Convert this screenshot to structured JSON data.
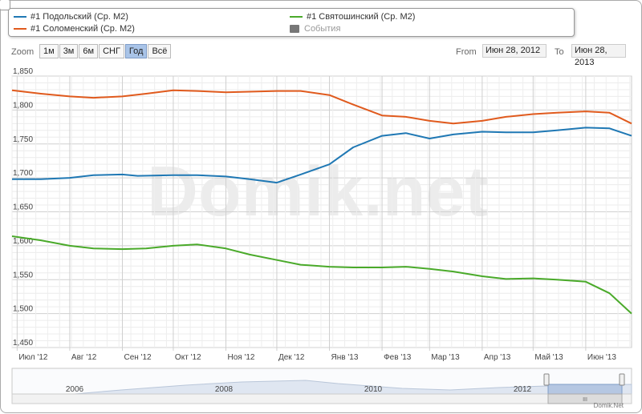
{
  "watermark": "Domik.net",
  "credit": "Domik.Net",
  "legend": {
    "items": [
      {
        "label": "#1 Подольский (Ср. М2)",
        "color": "#1f78b4"
      },
      {
        "label": "#1 Соломенский (Ср. М2)",
        "color": "#e05a1d"
      },
      {
        "label": "#1 Святошинский (Ср. М2)",
        "color": "#4aaa2a"
      },
      {
        "label": "События",
        "color": "#777777"
      }
    ]
  },
  "zoom": {
    "label": "Zoom",
    "buttons": [
      "1м",
      "3м",
      "6м",
      "СНГ",
      "Год",
      "Всё"
    ],
    "active": "Год"
  },
  "range": {
    "from_label": "From",
    "from_value": "Июн 28, 2012",
    "to_label": "To",
    "to_value": "Июн 28, 2013"
  },
  "chart_data": {
    "type": "line",
    "ylim": [
      1450,
      1850
    ],
    "yticks": [
      1450,
      1500,
      1550,
      1600,
      1650,
      1700,
      1750,
      1800,
      1850
    ],
    "ytick_labels": [
      "1,450",
      "1,500",
      "1,550",
      "1,600",
      "1,650",
      "1,700",
      "1,750",
      "1,800",
      "1,850"
    ],
    "xlim": [
      "2012-06-28",
      "2013-06-28"
    ],
    "xticks": [
      "2012-07-01",
      "2012-08-01",
      "2012-09-01",
      "2012-10-01",
      "2012-11-01",
      "2012-12-01",
      "2013-01-01",
      "2013-02-01",
      "2013-03-01",
      "2013-04-01",
      "2013-05-01",
      "2013-06-01"
    ],
    "xtick_labels": [
      "Июл '12",
      "Авг '12",
      "Сен '12",
      "Окт '12",
      "Ноя '12",
      "Дек '12",
      "Янв '13",
      "Фев '13",
      "Мар '13",
      "Апр '13",
      "Май '13",
      "Июн '13"
    ],
    "grid": true,
    "series": [
      {
        "name": "#1 Подольский (Ср. М2)",
        "color": "#1f78b4",
        "x": [
          "2012-06-28",
          "2012-07-15",
          "2012-08-01",
          "2012-08-15",
          "2012-09-01",
          "2012-09-10",
          "2012-10-01",
          "2012-10-15",
          "2012-11-01",
          "2012-11-15",
          "2012-12-01",
          "2012-12-15",
          "2013-01-01",
          "2013-01-15",
          "2013-02-01",
          "2013-02-15",
          "2013-03-01",
          "2013-03-15",
          "2013-04-01",
          "2013-04-15",
          "2013-05-01",
          "2013-05-15",
          "2013-06-01",
          "2013-06-15",
          "2013-06-28"
        ],
        "y": [
          1698,
          1698,
          1700,
          1704,
          1705,
          1703,
          1704,
          1704,
          1702,
          1698,
          1693,
          1705,
          1720,
          1745,
          1762,
          1766,
          1758,
          1764,
          1768,
          1767,
          1767,
          1770,
          1774,
          1773,
          1762
        ]
      },
      {
        "name": "#1 Соломенский (Ср. М2)",
        "color": "#e05a1d",
        "x": [
          "2012-06-28",
          "2012-07-15",
          "2012-08-01",
          "2012-08-15",
          "2012-09-01",
          "2012-09-15",
          "2012-10-01",
          "2012-10-15",
          "2012-11-01",
          "2012-11-15",
          "2012-12-01",
          "2012-12-15",
          "2013-01-01",
          "2013-01-15",
          "2013-02-01",
          "2013-02-15",
          "2013-03-01",
          "2013-03-15",
          "2013-04-01",
          "2013-04-15",
          "2013-05-01",
          "2013-05-15",
          "2013-06-01",
          "2013-06-15",
          "2013-06-28"
        ],
        "y": [
          1829,
          1824,
          1820,
          1818,
          1820,
          1824,
          1829,
          1828,
          1826,
          1827,
          1828,
          1828,
          1822,
          1808,
          1792,
          1790,
          1784,
          1780,
          1784,
          1790,
          1794,
          1796,
          1798,
          1796,
          1780
        ]
      },
      {
        "name": "#1 Святошинский (Ср. М2)",
        "color": "#4aaa2a",
        "x": [
          "2012-06-28",
          "2012-07-15",
          "2012-08-01",
          "2012-08-15",
          "2012-09-01",
          "2012-09-15",
          "2012-10-01",
          "2012-10-15",
          "2012-11-01",
          "2012-11-15",
          "2012-12-01",
          "2012-12-15",
          "2013-01-01",
          "2013-01-15",
          "2013-02-01",
          "2013-02-15",
          "2013-03-01",
          "2013-03-15",
          "2013-04-01",
          "2013-04-15",
          "2013-05-01",
          "2013-05-15",
          "2013-06-01",
          "2013-06-15",
          "2013-06-28"
        ],
        "y": [
          1614,
          1608,
          1600,
          1596,
          1595,
          1596,
          1600,
          1602,
          1596,
          1587,
          1579,
          1572,
          1569,
          1568,
          1568,
          1569,
          1566,
          1562,
          1555,
          1551,
          1552,
          1550,
          1547,
          1530,
          1500
        ]
      }
    ]
  },
  "navigator": {
    "year_labels": [
      "2006",
      "2008",
      "2010",
      "2012"
    ],
    "scroll_glyph": "III"
  }
}
